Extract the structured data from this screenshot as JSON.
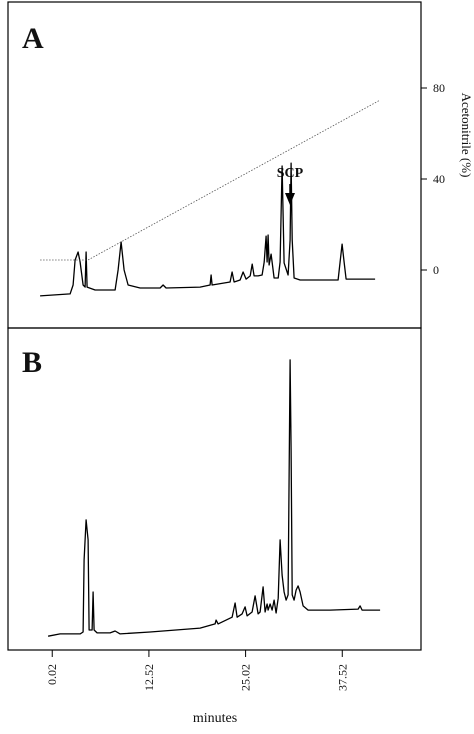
{
  "chart_data": [
    {
      "type": "line",
      "label": "A",
      "annotation": "SCP",
      "y2label": "Acetonitrile (%)",
      "xlim": [
        -5.7,
        47.7
      ],
      "ylim": [
        -25.5,
        117.8
      ],
      "y2lim": [
        -25.5,
        117.8
      ],
      "y2ticks": [
        0,
        40,
        80
      ],
      "series": [
        {
          "color": "#000000",
          "x": [
            -1.55,
            2.33,
            2.72,
            2.97,
            3.36,
            3.62,
            4.01,
            4.27,
            4.4,
            4.53,
            5.56,
            8.15,
            8.53,
            8.92,
            9.31,
            9.83,
            11.38,
            13.97,
            14.35,
            14.74,
            19.14,
            20.43,
            20.56,
            20.69,
            23.02,
            23.28,
            23.54,
            24.31,
            24.7,
            25.09,
            25.61,
            25.87,
            26.12,
            26.64,
            27.16,
            27.42,
            27.67,
            27.8,
            27.93,
            28.06,
            28.32,
            28.45,
            28.71,
            29.23,
            29.48,
            29.74,
            30.0,
            30.52,
            30.78,
            30.91,
            31.04,
            31.29,
            32.07,
            34.66,
            36.98,
            37.24,
            37.5,
            37.76,
            38.02,
            41.77
          ],
          "values": [
            -11.4,
            -10.5,
            -6.6,
            4.4,
            7.9,
            3.5,
            -6.6,
            -7.5,
            7.9,
            -7.5,
            -8.8,
            -8.8,
            0,
            12.3,
            0,
            -6.6,
            -7.9,
            -7.9,
            -6.6,
            -7.9,
            -7.5,
            -6.6,
            -2.2,
            -6.6,
            -5.3,
            -0.9,
            -5.3,
            -4.4,
            -0.9,
            -4.0,
            -2.6,
            2.6,
            -2.6,
            -2.6,
            -2.2,
            3.5,
            14.9,
            3.5,
            15.4,
            2.2,
            7.0,
            3.5,
            -3.5,
            -3.5,
            3.5,
            45.7,
            3.1,
            -2.2,
            13.2,
            47.0,
            13.2,
            -3.5,
            -4.4,
            -4.4,
            -4.4,
            3.5,
            11.4,
            3.5,
            -4.0,
            -4.0
          ]
        },
        {
          "color": "#555555",
          "axis": "y2",
          "dashed": true,
          "x": [
            -1.55,
            4.65,
            42.4
          ],
          "values": [
            4.4,
            4.4,
            74.7
          ]
        }
      ]
    },
    {
      "type": "line",
      "label": "B",
      "xlabel": "minutes",
      "xlim": [
        -5.7,
        47.7
      ],
      "ylim": [
        0,
        100
      ],
      "xticks": [
        0.02,
        12.52,
        25.02,
        37.52
      ],
      "series": [
        {
          "color": "#000000",
          "x": [
            -0.52,
            1.03,
            3.62,
            4.01,
            4.14,
            4.4,
            4.66,
            4.78,
            5.17,
            5.3,
            5.43,
            5.82,
            7.5,
            8.15,
            8.79,
            12.67,
            19.14,
            21.08,
            21.21,
            21.47,
            23.28,
            23.66,
            23.92,
            24.57,
            24.96,
            25.22,
            25.86,
            26.25,
            26.64,
            26.9,
            27.28,
            27.54,
            27.8,
            27.93,
            28.19,
            28.45,
            28.71,
            28.97,
            29.23,
            29.48,
            29.74,
            30.0,
            30.26,
            30.52,
            30.78,
            30.91,
            31.04,
            31.29,
            31.55,
            31.81,
            32.07,
            32.46,
            33.1,
            35.95,
            39.57,
            39.83,
            40.09,
            42.41
          ],
          "values": [
            4.3,
            5.0,
            5.0,
            5.6,
            28.0,
            40.4,
            34.2,
            6.2,
            6.2,
            18.0,
            6.2,
            5.3,
            5.3,
            5.9,
            5.0,
            5.6,
            6.8,
            8.1,
            9.3,
            8.1,
            10.2,
            14.6,
            10.2,
            11.2,
            13.4,
            10.6,
            11.8,
            16.8,
            11.2,
            11.8,
            19.6,
            11.8,
            14.3,
            12.4,
            14.3,
            12.4,
            15.5,
            11.5,
            16.1,
            34.2,
            23.3,
            18.0,
            15.5,
            17.1,
            90.1,
            62.1,
            17.1,
            15.5,
            18.6,
            19.9,
            18.0,
            13.7,
            12.4,
            12.4,
            12.7,
            13.7,
            12.4,
            12.4
          ]
        }
      ]
    }
  ]
}
